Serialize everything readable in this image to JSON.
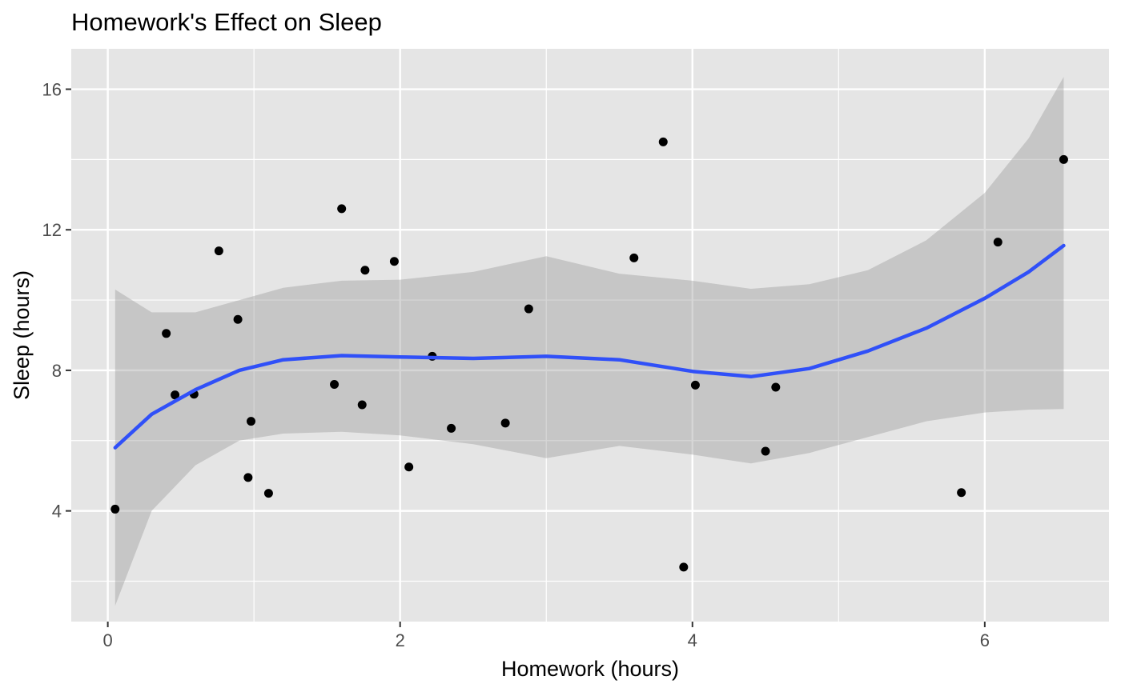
{
  "chart_data": {
    "type": "scatter",
    "title": "Homework's Effect on Sleep",
    "xlabel": "Homework (hours)",
    "ylabel": "Sleep (hours)",
    "xlim": [
      -0.25,
      6.85
    ],
    "ylim": [
      0.85,
      17.15
    ],
    "x_ticks": [
      0,
      2,
      4,
      6
    ],
    "y_ticks": [
      4,
      8,
      12,
      16
    ],
    "x_minor_ticks": [
      1,
      3,
      5
    ],
    "y_minor_ticks": [
      2,
      6,
      10,
      14
    ],
    "grid": true,
    "colors": {
      "panel_background": "#e5e5e5",
      "grid": "#ffffff",
      "points": "#000000",
      "smooth_line": "#3050f8",
      "confidence_band": "#999999",
      "axis_text": "#4d4d4d"
    },
    "points": [
      {
        "x": 0.05,
        "y": 4.05
      },
      {
        "x": 0.4,
        "y": 9.05
      },
      {
        "x": 0.46,
        "y": 7.3
      },
      {
        "x": 0.59,
        "y": 7.32
      },
      {
        "x": 0.76,
        "y": 11.4
      },
      {
        "x": 0.89,
        "y": 9.45
      },
      {
        "x": 0.96,
        "y": 4.95
      },
      {
        "x": 0.98,
        "y": 6.55
      },
      {
        "x": 1.1,
        "y": 4.5
      },
      {
        "x": 1.55,
        "y": 7.6
      },
      {
        "x": 1.6,
        "y": 12.6
      },
      {
        "x": 1.74,
        "y": 7.02
      },
      {
        "x": 1.76,
        "y": 10.85
      },
      {
        "x": 1.96,
        "y": 11.1
      },
      {
        "x": 2.06,
        "y": 5.25
      },
      {
        "x": 2.22,
        "y": 8.4
      },
      {
        "x": 2.35,
        "y": 6.35
      },
      {
        "x": 2.72,
        "y": 6.5
      },
      {
        "x": 2.88,
        "y": 9.75
      },
      {
        "x": 3.6,
        "y": 11.2
      },
      {
        "x": 3.8,
        "y": 14.5
      },
      {
        "x": 3.94,
        "y": 2.4
      },
      {
        "x": 4.02,
        "y": 7.58
      },
      {
        "x": 4.5,
        "y": 5.7
      },
      {
        "x": 4.57,
        "y": 7.52
      },
      {
        "x": 5.84,
        "y": 4.52
      },
      {
        "x": 6.09,
        "y": 11.65
      },
      {
        "x": 6.54,
        "y": 14.0
      }
    ],
    "smooth": {
      "method": "loess",
      "x": [
        0.05,
        0.3,
        0.6,
        0.9,
        1.2,
        1.6,
        2.0,
        2.5,
        3.0,
        3.5,
        4.0,
        4.4,
        4.8,
        5.2,
        5.6,
        6.0,
        6.3,
        6.54
      ],
      "y": [
        5.8,
        6.75,
        7.45,
        8.0,
        8.3,
        8.42,
        8.38,
        8.34,
        8.4,
        8.3,
        7.97,
        7.82,
        8.05,
        8.55,
        9.2,
        10.05,
        10.8,
        11.55
      ],
      "lower": [
        1.3,
        4.0,
        5.3,
        6.0,
        6.2,
        6.25,
        6.15,
        5.9,
        5.5,
        5.85,
        5.6,
        5.35,
        5.65,
        6.1,
        6.55,
        6.8,
        6.88,
        6.9
      ],
      "upper": [
        10.3,
        9.65,
        9.65,
        10.0,
        10.35,
        10.55,
        10.58,
        10.8,
        11.25,
        10.75,
        10.55,
        10.32,
        10.45,
        10.85,
        11.7,
        13.05,
        14.6,
        16.35
      ]
    }
  }
}
